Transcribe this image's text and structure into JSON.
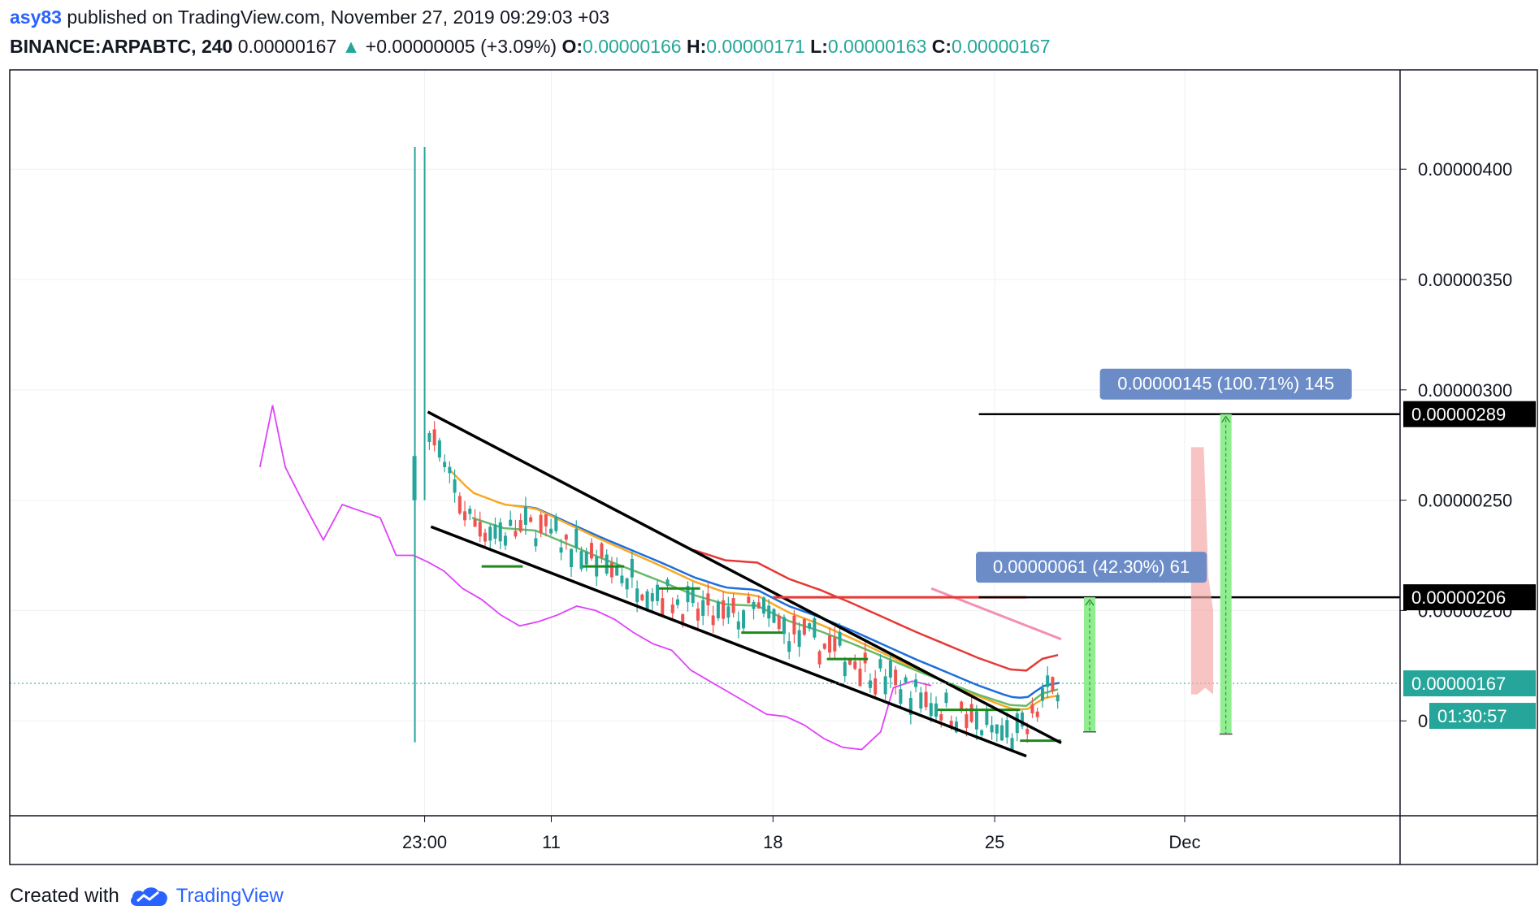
{
  "header": {
    "user": "asy83",
    "published_text": "published on TradingView.com, November 27, 2019 09:29:03 +03",
    "symbol": "BINANCE:ARPABTC, 240",
    "last_price": "0.00000167",
    "change": "+0.00000005 (+3.09%)",
    "open_label": "O:",
    "open": "0.00000166",
    "high_label": "H:",
    "high": "0.00000171",
    "low_label": "L:",
    "low": "0.00000163",
    "close_label": "C:",
    "close": "0.00000167"
  },
  "footer": {
    "created_with": "Created with",
    "brand": "TradingView"
  },
  "colors": {
    "up": "#26a69a",
    "down": "#ef5350",
    "ma_fast": "#66bb6a",
    "ma_mid": "#f9a825",
    "ma_slow": "#1e6fd9",
    "ma_long": "#e53935",
    "oscillator": "#e040fb",
    "projection": "#90ee90",
    "label_bg": "#6b8cc7"
  },
  "chart_data": {
    "type": "candlestick",
    "symbol": "BINANCE:ARPABTC",
    "interval": "240",
    "ylim": [
      1.07e-06,
      4.45e-06
    ],
    "y_ticks": [
      "0.00000400",
      "0.00000350",
      "0.00000300",
      "0.00000250",
      "0.00000200",
      "0.00000150"
    ],
    "y_tick_values": [
      4e-06,
      3.5e-06,
      3e-06,
      2.5e-06,
      2e-06,
      1.5e-06
    ],
    "x_ticks": [
      {
        "label": "23:00",
        "t": 0
      },
      {
        "label": "11",
        "t": 4
      },
      {
        "label": "18",
        "t": 11
      },
      {
        "label": "25",
        "t": 18
      },
      {
        "label": "Dec",
        "t": 24
      }
    ],
    "x_range_days": [
      -13.1,
      30.8
    ],
    "spike": {
      "t": 0,
      "open": 2.5e-06,
      "high": 4.1e-06,
      "low": 1.55e-06,
      "close": 2.7e-06
    },
    "price_path": [
      [
        0.05,
        2.9e-06
      ],
      [
        0.7,
        2.6e-06
      ],
      [
        1.5,
        2.4e-06
      ],
      [
        2.5,
        2.35e-06
      ],
      [
        3.5,
        2.38e-06
      ],
      [
        4.5,
        2.3e-06
      ],
      [
        5.5,
        2.22e-06
      ],
      [
        6.5,
        2.15e-06
      ],
      [
        7.5,
        2.08e-06
      ],
      [
        8.5,
        2e-06
      ],
      [
        9.5,
        1.96e-06
      ],
      [
        10.5,
        2e-06
      ],
      [
        11.5,
        1.9e-06
      ],
      [
        12.5,
        1.85e-06
      ],
      [
        13.5,
        1.78e-06
      ],
      [
        14.5,
        1.7e-06
      ],
      [
        15.5,
        1.62e-06
      ],
      [
        16.5,
        1.55e-06
      ],
      [
        17.5,
        1.48e-06
      ],
      [
        18.5,
        1.43e-06
      ],
      [
        19.0,
        1.45e-06
      ],
      [
        19.5,
        1.6e-06
      ],
      [
        20.0,
        1.67e-06
      ]
    ],
    "trendlines": [
      {
        "name": "upper",
        "from": [
          0.1,
          2.9e-06
        ],
        "to": [
          20.1,
          1.4e-06
        ]
      },
      {
        "name": "lower",
        "from": [
          0.2,
          2.38e-06
        ],
        "to": [
          19.0,
          1.34e-06
        ]
      }
    ],
    "horizontal_levels": [
      {
        "value": 2.89e-06,
        "label": "0.00000289",
        "from_t": 17.5
      },
      {
        "value": 2.06e-06,
        "label": "0.00000206",
        "from_t": 17.5
      },
      {
        "value": 1.67e-06,
        "label": "0.00000167",
        "style": "dotted",
        "current": true
      }
    ],
    "red_level": {
      "value": 2.06e-06,
      "from_t": 11.0,
      "to_t": 19.0
    },
    "countdown": "01:30:57",
    "projections": [
      {
        "t": 21.0,
        "from": 1.45e-06,
        "to": 2.06e-06,
        "label": "0.00000061 (42.30%) 61"
      },
      {
        "t": 25.3,
        "from": 1.44e-06,
        "to": 2.89e-06,
        "label": "0.00000145 (100.71%) 145"
      }
    ],
    "ghost_bar": {
      "t_from": 24.2,
      "t_to": 24.9,
      "low": 1.62e-06,
      "high": 2.74e-06
    },
    "oscillator_path": [
      [
        -5.2,
        2.65e-06
      ],
      [
        -4.8,
        2.93e-06
      ],
      [
        -4.4,
        2.65e-06
      ],
      [
        -3.8,
        2.48e-06
      ],
      [
        -3.2,
        2.32e-06
      ],
      [
        -2.6,
        2.48e-06
      ],
      [
        -2.0,
        2.45e-06
      ],
      [
        -1.4,
        2.42e-06
      ],
      [
        -0.9,
        2.25e-06
      ],
      [
        -0.35,
        2.25e-06
      ],
      [
        0.1,
        2.22e-06
      ],
      [
        0.6,
        2.18e-06
      ],
      [
        1.2,
        2.1e-06
      ],
      [
        1.8,
        2.05e-06
      ],
      [
        2.4,
        1.98e-06
      ],
      [
        3.0,
        1.93e-06
      ],
      [
        3.6,
        1.95e-06
      ],
      [
        4.2,
        1.98e-06
      ],
      [
        4.8,
        2.02e-06
      ],
      [
        5.4,
        2e-06
      ],
      [
        6.0,
        1.96e-06
      ],
      [
        6.6,
        1.9e-06
      ],
      [
        7.2,
        1.85e-06
      ],
      [
        7.8,
        1.82e-06
      ],
      [
        8.4,
        1.73e-06
      ],
      [
        9.0,
        1.68e-06
      ],
      [
        9.6,
        1.63e-06
      ],
      [
        10.2,
        1.58e-06
      ],
      [
        10.8,
        1.53e-06
      ],
      [
        11.4,
        1.52e-06
      ],
      [
        12.0,
        1.48e-06
      ],
      [
        12.6,
        1.42e-06
      ],
      [
        13.2,
        1.38e-06
      ],
      [
        13.8,
        1.37e-06
      ],
      [
        14.4,
        1.45e-06
      ],
      [
        14.8,
        1.65e-06
      ],
      [
        15.4,
        1.68e-06
      ],
      [
        16.0,
        1.66e-06
      ]
    ],
    "moving_averages": [
      {
        "key": "ma_long",
        "from_t": 8.5,
        "start": 2.28e-06,
        "end": 1.68e-06,
        "to_t": 20.1
      },
      {
        "key": "ma_slow",
        "from_t": 2.8,
        "start": 2.48e-06,
        "end": 1.58e-06,
        "to_t": 20.1
      },
      {
        "key": "ma_mid",
        "from_t": 0.8,
        "start": 2.65e-06,
        "end": 1.53e-06,
        "to_t": 20.1
      },
      {
        "key": "ma_fast",
        "from_t": 1.5,
        "start": 2.4e-06,
        "end": 1.58e-06,
        "to_t": 20.1
      }
    ],
    "oscillator_ma": {
      "from": [
        16.0,
        2.1e-06
      ],
      "to": [
        20.1,
        1.87e-06
      ]
    }
  }
}
